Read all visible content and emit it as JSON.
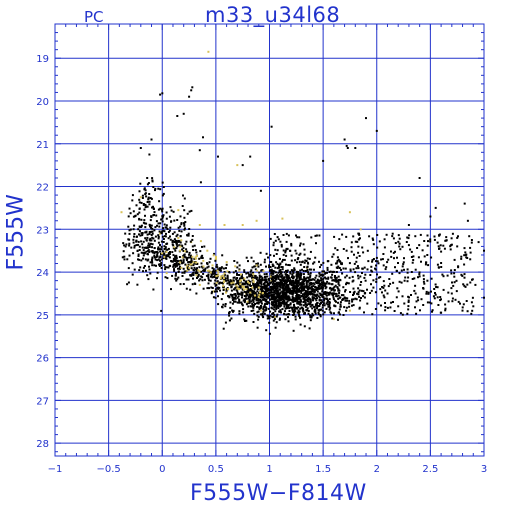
{
  "corner_label": "PC",
  "chart_data": {
    "type": "scatter",
    "title": "m33_u34l68",
    "xlabel": "F555W−F814W",
    "ylabel": "F555W",
    "xlim": [
      -1,
      3
    ],
    "ylim": [
      28.3,
      18.2
    ],
    "y_inverted": true,
    "grid": true,
    "x_ticks": [
      "−1",
      "−0.5",
      "0",
      "0.5",
      "1",
      "1.5",
      "2",
      "2.5",
      "3"
    ],
    "x_tick_values": [
      -1,
      -0.5,
      0,
      0.5,
      1,
      1.5,
      2,
      2.5,
      3
    ],
    "y_ticks": [
      "19",
      "20",
      "21",
      "22",
      "23",
      "24",
      "25",
      "26",
      "27",
      "28"
    ],
    "y_tick_values": [
      19,
      20,
      21,
      22,
      23,
      24,
      25,
      26,
      27,
      28
    ],
    "series": [
      {
        "color": "#000000",
        "points": [
          [
            -0.02,
            19.85
          ],
          [
            0.0,
            19.82
          ],
          [
            0.27,
            19.75
          ],
          [
            0.28,
            19.68
          ],
          [
            0.25,
            19.9
          ],
          [
            0.2,
            20.3
          ],
          [
            0.14,
            20.35
          ],
          [
            0.38,
            20.85
          ],
          [
            0.35,
            21.15
          ],
          [
            0.52,
            21.3
          ],
          [
            1.02,
            20.6
          ],
          [
            1.7,
            20.9
          ],
          [
            1.72,
            21.05
          ],
          [
            1.73,
            21.1
          ],
          [
            1.8,
            21.1
          ],
          [
            1.9,
            20.4
          ],
          [
            2.0,
            20.7
          ],
          [
            1.5,
            21.4
          ],
          [
            0.92,
            22.1
          ],
          [
            0.75,
            21.5
          ],
          [
            0.82,
            21.3
          ],
          [
            0.36,
            21.9
          ],
          [
            -0.2,
            21.1
          ],
          [
            -0.1,
            20.9
          ],
          [
            -0.12,
            21.25
          ],
          [
            2.4,
            21.8
          ],
          [
            2.82,
            22.4
          ],
          [
            2.55,
            22.5
          ],
          [
            2.5,
            22.7
          ],
          [
            2.85,
            22.8
          ],
          [
            2.3,
            22.9
          ],
          [
            2.75,
            23.2
          ],
          [
            2.95,
            23.3
          ],
          [
            2.75,
            23.4
          ],
          [
            3.0,
            23.5
          ],
          [
            2.7,
            24.5
          ],
          [
            2.8,
            24.9
          ],
          [
            2.9,
            24.8
          ],
          [
            2.6,
            24.95
          ],
          [
            3.0,
            24.6
          ],
          [
            2.92,
            24.3
          ],
          [
            2.4,
            24.1
          ],
          [
            2.2,
            24.8
          ],
          [
            2.1,
            24.5
          ]
        ]
      },
      {
        "color": "#d8c25a",
        "points": [
          [
            0.43,
            18.85
          ],
          [
            -0.38,
            22.6
          ],
          [
            -0.2,
            22.25
          ],
          [
            0.15,
            22.55
          ],
          [
            0.35,
            22.9
          ],
          [
            0.58,
            22.9
          ],
          [
            0.75,
            22.9
          ],
          [
            0.88,
            22.8
          ],
          [
            1.12,
            22.75
          ],
          [
            1.75,
            22.6
          ],
          [
            1.85,
            23.0
          ],
          [
            0.7,
            21.5
          ],
          [
            -0.02,
            23.1
          ],
          [
            0.15,
            23.2
          ],
          [
            0.27,
            23.3
          ],
          [
            0.42,
            23.5
          ],
          [
            0.5,
            23.7
          ],
          [
            0.33,
            23.8
          ],
          [
            0.45,
            24.0
          ],
          [
            0.55,
            24.1
          ],
          [
            0.62,
            24.25
          ],
          [
            0.7,
            24.35
          ],
          [
            0.58,
            24.4
          ],
          [
            0.78,
            24.5
          ],
          [
            0.9,
            24.55
          ],
          [
            0.72,
            24.65
          ],
          [
            0.65,
            24.2
          ],
          [
            0.85,
            24.1
          ],
          [
            1.02,
            24.2
          ],
          [
            1.1,
            23.95
          ],
          [
            0.35,
            24.3
          ],
          [
            0.48,
            24.45
          ],
          [
            1.62,
            24.7
          ],
          [
            1.75,
            24.9
          ],
          [
            1.6,
            25.1
          ],
          [
            1.35,
            23.9
          ],
          [
            1.05,
            25.05
          ],
          [
            0.92,
            24.9
          ],
          [
            1.5,
            24.0
          ],
          [
            0.23,
            23.9
          ]
        ]
      }
    ]
  }
}
